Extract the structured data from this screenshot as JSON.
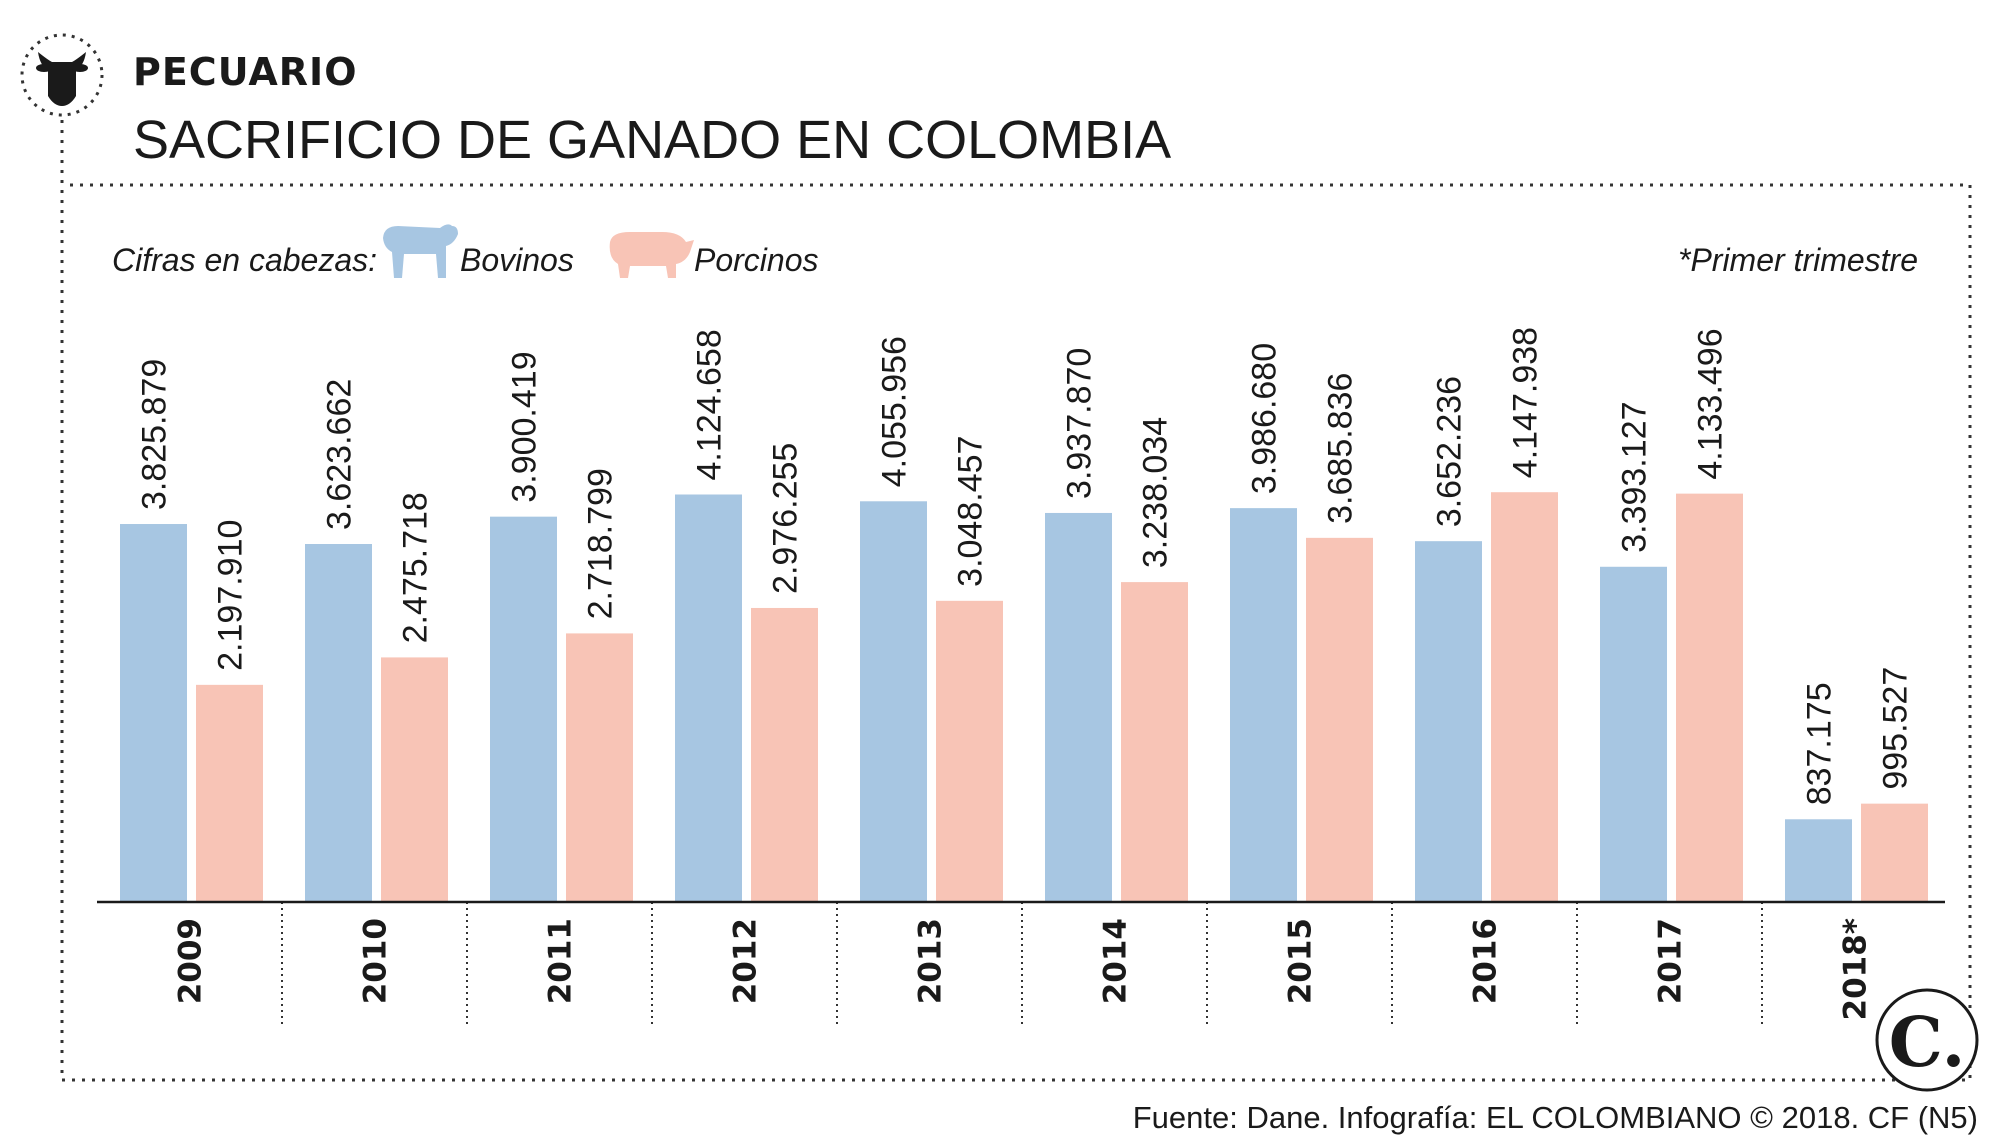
{
  "header": {
    "kicker": "PECUARIO",
    "title": "SACRIFICIO DE GANADO EN COLOMBIA",
    "icon": "cow-head-icon"
  },
  "legend": {
    "prefix": "Cifras en cabezas:",
    "note": "*Primer trimestre",
    "placement": "top-left"
  },
  "source": "Fuente: Dane. Infografía: EL COLOMBIANO © 2018. CF (N5)",
  "logo": {
    "text": "C."
  },
  "colors": {
    "bovinos": "#a7c6e2",
    "porcinos": "#f8c4b6",
    "text": "#1a1a1a"
  },
  "chart_data": {
    "type": "bar",
    "categories": [
      "2009",
      "2010",
      "2011",
      "2012",
      "2013",
      "2014",
      "2015",
      "2016",
      "2017",
      "2018*"
    ],
    "series": [
      {
        "name": "Bovinos",
        "values": [
          3825879,
          3623662,
          3900419,
          4124658,
          4055956,
          3937870,
          3986680,
          3652236,
          3393127,
          837175
        ],
        "labels": [
          "3.825.879",
          "3.623.662",
          "3.900.419",
          "4.124.658",
          "4.055.956",
          "3.937.870",
          "3.986.680",
          "3.652.236",
          "3.393.127",
          "837.175"
        ]
      },
      {
        "name": "Porcinos",
        "values": [
          2197910,
          2475718,
          2718799,
          2976255,
          3048457,
          3238034,
          3685836,
          4147938,
          4133496,
          995527
        ],
        "labels": [
          "2.197.910",
          "2.475.718",
          "2.718.799",
          "2.976.255",
          "3.048.457",
          "3.238.034",
          "3.685.836",
          "4.147.938",
          "4.133.496",
          "995.527"
        ]
      }
    ],
    "ylim": [
      0,
      4150000
    ],
    "grid": false
  }
}
